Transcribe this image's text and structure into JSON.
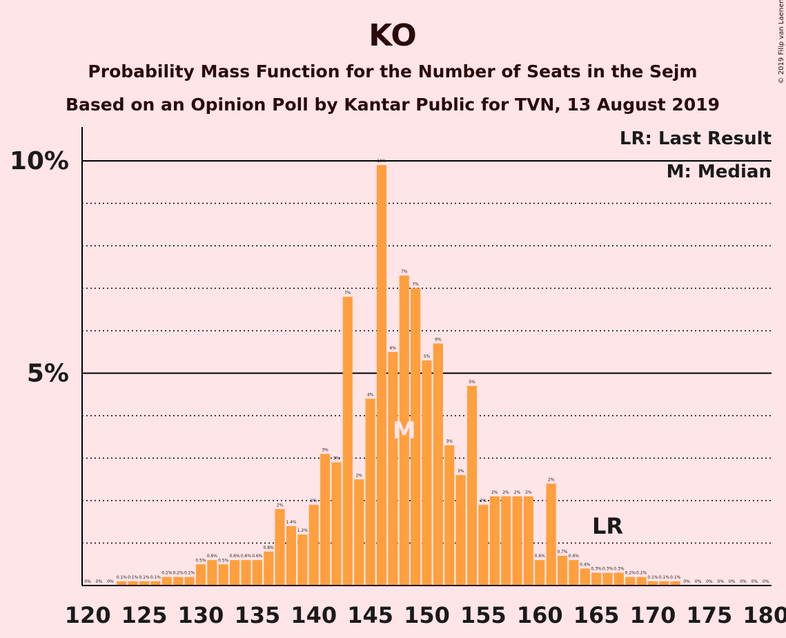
{
  "chart_data": {
    "type": "bar",
    "title": "KO",
    "subtitle": "Probability Mass Function for the Number of Seats in the Sejm",
    "subtitle2": "Based on an Opinion Poll by Kantar Public for TVN, 13 August 2019",
    "copyright": "© 2019 Filip van Laenen",
    "legend": [
      "LR: Last Result",
      "M: Median"
    ],
    "last_result_label": "LR",
    "last_result_seat": 166,
    "median_label": "M",
    "median_seat": 148,
    "x_tick_labels": [
      "120",
      "125",
      "130",
      "135",
      "140",
      "145",
      "150",
      "155",
      "160",
      "165",
      "170",
      "175",
      "180"
    ],
    "y_tick_labels": [
      "5%",
      "10%"
    ],
    "ylim": [
      0,
      10.8
    ],
    "xlim": [
      120,
      180
    ],
    "colors": {
      "bar": "#FF9F3E",
      "background": "#FFE4E8"
    },
    "x": [
      120,
      121,
      122,
      123,
      124,
      125,
      126,
      127,
      128,
      129,
      130,
      131,
      132,
      133,
      134,
      135,
      136,
      137,
      138,
      139,
      140,
      141,
      142,
      143,
      144,
      145,
      146,
      147,
      148,
      149,
      150,
      151,
      152,
      153,
      154,
      155,
      156,
      157,
      158,
      159,
      160,
      161,
      162,
      163,
      164,
      165,
      166,
      167,
      168,
      169,
      170,
      171,
      172,
      173,
      174,
      175,
      176,
      177,
      178,
      179,
      180
    ],
    "values": [
      0,
      0,
      0,
      0.1,
      0.1,
      0.1,
      0.1,
      0.2,
      0.2,
      0.2,
      0.5,
      0.6,
      0.5,
      0.6,
      0.6,
      0.6,
      0.8,
      1.8,
      1.4,
      1.2,
      1.9,
      3.1,
      2.9,
      6.8,
      2.5,
      4.4,
      9.9,
      5.5,
      7.3,
      7.0,
      5.3,
      5.7,
      3.3,
      2.6,
      4.7,
      1.9,
      2.1,
      2.1,
      2.1,
      2.1,
      0.6,
      2.4,
      0.7,
      0.6,
      0.4,
      0.3,
      0.3,
      0.3,
      0.2,
      0.2,
      0.1,
      0.1,
      0.1,
      0,
      0,
      0,
      0,
      0,
      0,
      0,
      0
    ],
    "value_labels": [
      "0%",
      "0%",
      "0%",
      "0.1%",
      "0.1%",
      "0.1%",
      "0.1%",
      "0.2%",
      "0.2%",
      "0.2%",
      "0.5%",
      "0.6%",
      "0.5%",
      "0.6%",
      "0.6%",
      "0.6%",
      "0.8%",
      "2%",
      "1.4%",
      "1.2%",
      "2%",
      "3%",
      "3%",
      "7%",
      "2%",
      "4%",
      "10%",
      "6%",
      "7%",
      "7%",
      "5%",
      "6%",
      "3%",
      "3%",
      "5%",
      "2%",
      "2%",
      "2%",
      "2%",
      "2%",
      "0.6%",
      "2%",
      "0.7%",
      "0.6%",
      "0.4%",
      "0.3%",
      "0.3%",
      "0.3%",
      "0.2%",
      "0.2%",
      "0.1%",
      "0.1%",
      "0.1%",
      "0%",
      "0%",
      "0%",
      "0%",
      "0%",
      "0%",
      "0%",
      "0%"
    ],
    "grid": "dotted every 1%, solid at 5% and 10%"
  }
}
